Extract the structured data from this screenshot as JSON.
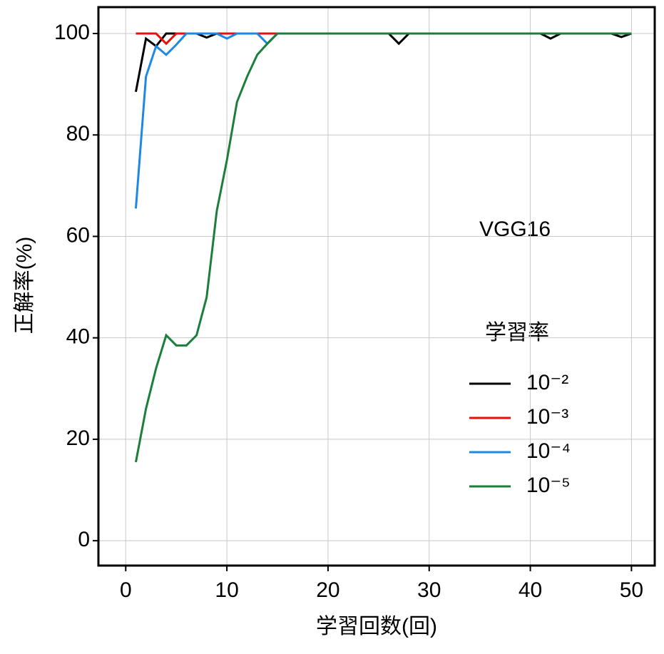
{
  "chart_data": {
    "type": "line",
    "annotation": "VGG16",
    "x_label": "学習回数(回)",
    "y_label": "正解率(%)",
    "legend_title": "学習率",
    "legend_position": "right",
    "grid": true,
    "x": [
      1,
      2,
      3,
      4,
      5,
      6,
      7,
      8,
      9,
      10,
      11,
      12,
      13,
      14,
      15,
      16,
      17,
      18,
      19,
      20,
      21,
      22,
      23,
      24,
      25,
      26,
      27,
      28,
      29,
      30,
      31,
      32,
      33,
      34,
      35,
      36,
      37,
      38,
      39,
      40,
      41,
      42,
      43,
      44,
      45,
      46,
      47,
      48,
      49,
      50
    ],
    "series": [
      {
        "name": "10⁻²",
        "color": "#000000",
        "values": [
          88.5,
          99,
          97.5,
          100,
          100,
          100,
          100,
          99.2,
          100,
          100,
          100,
          100,
          100,
          100,
          100,
          100,
          100,
          100,
          100,
          100,
          100,
          100,
          100,
          100,
          100,
          100,
          98,
          100,
          100,
          100,
          100,
          100,
          100,
          100,
          100,
          100,
          100,
          100,
          100,
          100,
          100,
          99,
          100,
          100,
          100,
          100,
          100,
          100,
          99.3,
          100
        ]
      },
      {
        "name": "10⁻³",
        "color": "#e3120b",
        "values": [
          100,
          100,
          100,
          98,
          100,
          100,
          100,
          100,
          100,
          100,
          100,
          100,
          100,
          100,
          100,
          100,
          100,
          100,
          100,
          100,
          100,
          100,
          100,
          100,
          100,
          100,
          100,
          100,
          100,
          100,
          100,
          100,
          100,
          100,
          100,
          100,
          100,
          100,
          100,
          100,
          100,
          100,
          100,
          100,
          100,
          100,
          100,
          100,
          100,
          100
        ]
      },
      {
        "name": "10⁻⁴",
        "color": "#1e88e5",
        "values": [
          65.5,
          91.5,
          97.5,
          95.8,
          97.8,
          100,
          100,
          100,
          100,
          99,
          100,
          100,
          100,
          98,
          100,
          100,
          100,
          100,
          100,
          100,
          100,
          100,
          100,
          100,
          100,
          100,
          100,
          100,
          100,
          100,
          100,
          100,
          100,
          100,
          100,
          100,
          100,
          100,
          100,
          100,
          100,
          100,
          100,
          100,
          100,
          100,
          100,
          100,
          100,
          100
        ]
      },
      {
        "name": "10⁻⁵",
        "color": "#1b7f3a",
        "values": [
          15.5,
          26,
          34,
          40.5,
          38.5,
          38.5,
          40.5,
          48,
          65,
          75,
          86.5,
          91.5,
          95.8,
          98,
          100,
          100,
          100,
          100,
          100,
          100,
          100,
          100,
          100,
          100,
          100,
          100,
          100,
          100,
          100,
          100,
          100,
          100,
          100,
          100,
          100,
          100,
          100,
          100,
          100,
          100,
          100,
          100,
          100,
          100,
          100,
          100,
          100,
          100,
          100,
          100
        ]
      }
    ],
    "xlim": [
      -2.7,
      52.3
    ],
    "ylim": [
      -4.9,
      105.2
    ],
    "xticks": [
      0,
      10,
      20,
      30,
      40,
      50
    ],
    "yticks": [
      0,
      20,
      40,
      60,
      80,
      100
    ]
  }
}
